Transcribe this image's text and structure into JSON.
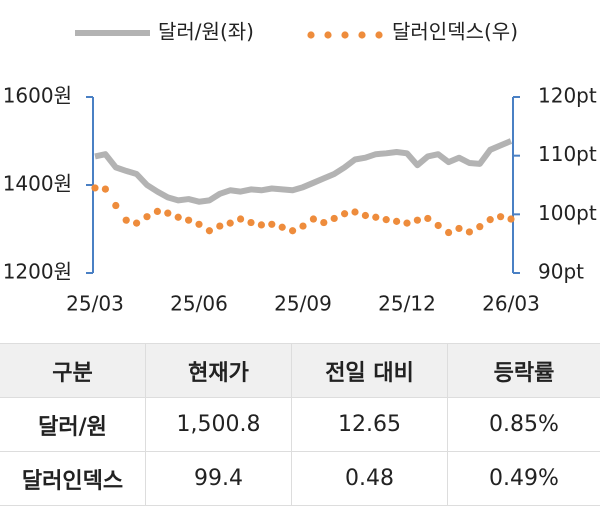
{
  "chart_data": {
    "type": "line",
    "categories": [
      "25/03",
      null,
      null,
      null,
      null,
      null,
      null,
      null,
      null,
      null,
      "25/06",
      null,
      null,
      null,
      null,
      null,
      null,
      null,
      null,
      null,
      "25/09",
      null,
      null,
      null,
      null,
      null,
      null,
      null,
      null,
      null,
      "25/12",
      null,
      null,
      null,
      null,
      null,
      null,
      null,
      null,
      null,
      "26/03"
    ],
    "series": [
      {
        "name": "달러/원(좌)",
        "color": "#b3b3b3",
        "style": "line",
        "axis": "y",
        "values": [
          1465,
          1470,
          1440,
          1432,
          1425,
          1400,
          1385,
          1372,
          1365,
          1368,
          1362,
          1365,
          1380,
          1388,
          1385,
          1390,
          1388,
          1392,
          1390,
          1388,
          1395,
          1405,
          1415,
          1425,
          1440,
          1458,
          1462,
          1470,
          1472,
          1475,
          1472,
          1445,
          1465,
          1470,
          1452,
          1462,
          1450,
          1448,
          1480,
          1490,
          1500
        ]
      },
      {
        "name": "달러인덱스(우)",
        "color": "#ee8c3c",
        "style": "dots",
        "axis": "y2",
        "values": [
          104.5,
          104.3,
          101.5,
          99.0,
          98.5,
          99.6,
          100.5,
          100.2,
          99.5,
          99.0,
          98.3,
          97.2,
          98.0,
          98.5,
          99.2,
          98.6,
          98.2,
          98.3,
          97.8,
          97.2,
          98.0,
          99.2,
          98.6,
          99.3,
          100.1,
          100.4,
          99.8,
          99.5,
          99.1,
          98.8,
          98.5,
          99.0,
          99.3,
          98.1,
          96.9,
          97.6,
          97.0,
          97.9,
          99.1,
          99.6,
          99.2
        ]
      }
    ],
    "ylim": [
      1200,
      1600
    ],
    "yticks": [
      {
        "value": 1200,
        "label": "1200원"
      },
      {
        "value": 1400,
        "label": "1400원"
      },
      {
        "value": 1600,
        "label": "1600원"
      }
    ],
    "y2lim": [
      90,
      120
    ],
    "y2ticks": [
      {
        "value": 90,
        "label": "90pt"
      },
      {
        "value": 100,
        "label": "100pt"
      },
      {
        "value": 110,
        "label": "110pt"
      },
      {
        "value": 120,
        "label": "120pt"
      }
    ],
    "axis_color": "#4a80c4"
  },
  "table": {
    "header": [
      "구분",
      "현재가",
      "전일 대비",
      "등락률"
    ],
    "rows": [
      [
        "달러/원",
        "1,500.8",
        "12.65",
        "0.85%"
      ],
      [
        "달러인덱스",
        "99.4",
        "0.48",
        "0.49%"
      ]
    ]
  }
}
